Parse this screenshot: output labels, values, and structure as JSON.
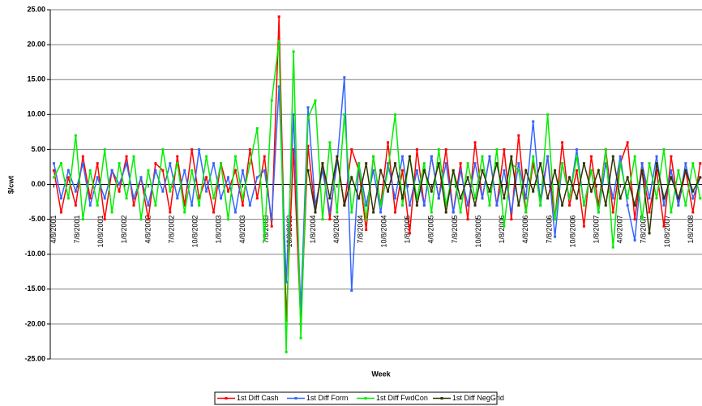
{
  "chart_data": {
    "type": "line",
    "x_label": "Week",
    "y_label": "$/cwt",
    "xlim": [
      -2,
      357
    ],
    "ylim": [
      -25,
      25
    ],
    "grid": true,
    "legend": "bottom",
    "yticks": [
      {
        "value": -25,
        "label": "-25.00"
      },
      {
        "value": -20,
        "label": "-20.00"
      },
      {
        "value": -15,
        "label": "-15.00"
      },
      {
        "value": -10,
        "label": "-10.00"
      },
      {
        "value": -5,
        "label": "-5.00"
      },
      {
        "value": 0,
        "label": "0.00"
      },
      {
        "value": 5,
        "label": "5.00"
      },
      {
        "value": 10,
        "label": "10.00"
      },
      {
        "value": 15,
        "label": "15.00"
      },
      {
        "value": 20,
        "label": "20.00"
      },
      {
        "value": 25,
        "label": "25.00"
      }
    ],
    "xticks": [
      {
        "value": 0,
        "label": "4/8/2001"
      },
      {
        "value": 13,
        "label": "7/8/2001"
      },
      {
        "value": 26,
        "label": "10/8/2001"
      },
      {
        "value": 39,
        "label": "1/8/2002"
      },
      {
        "value": 52,
        "label": "4/8/2002"
      },
      {
        "value": 65,
        "label": "7/8/2002"
      },
      {
        "value": 78,
        "label": "10/8/2002"
      },
      {
        "value": 91,
        "label": "1/8/2003"
      },
      {
        "value": 104,
        "label": "4/8/2003"
      },
      {
        "value": 117,
        "label": "7/8/2003"
      },
      {
        "value": 130,
        "label": "10/8/2003"
      },
      {
        "value": 143,
        "label": "1/8/2004"
      },
      {
        "value": 156,
        "label": "4/8/2004"
      },
      {
        "value": 169,
        "label": "7/8/2004"
      },
      {
        "value": 182,
        "label": "10/8/2004"
      },
      {
        "value": 195,
        "label": "1/8/2005"
      },
      {
        "value": 208,
        "label": "4/8/2005"
      },
      {
        "value": 221,
        "label": "7/8/2005"
      },
      {
        "value": 234,
        "label": "10/8/2005"
      },
      {
        "value": 247,
        "label": "1/8/2006"
      },
      {
        "value": 260,
        "label": "4/8/2006"
      },
      {
        "value": 273,
        "label": "7/8/2006"
      },
      {
        "value": 286,
        "label": "10/8/2006"
      },
      {
        "value": 299,
        "label": "1/8/2007"
      },
      {
        "value": 312,
        "label": "4/8/2007"
      },
      {
        "value": 325,
        "label": "7/8/2007"
      },
      {
        "value": 338,
        "label": "10/8/2007"
      },
      {
        "value": 351,
        "label": "1/8/2008"
      }
    ],
    "x": [
      0,
      4,
      8,
      12,
      16,
      20,
      24,
      28,
      32,
      36,
      40,
      44,
      48,
      52,
      56,
      60,
      64,
      68,
      72,
      76,
      80,
      84,
      88,
      92,
      96,
      100,
      104,
      108,
      112,
      116,
      120,
      124,
      128,
      132,
      136,
      140,
      144,
      148,
      152,
      156,
      160,
      164,
      168,
      172,
      176,
      180,
      184,
      188,
      192,
      196,
      200,
      204,
      208,
      212,
      216,
      220,
      224,
      228,
      232,
      236,
      240,
      244,
      248,
      252,
      256,
      260,
      264,
      268,
      272,
      276,
      280,
      284,
      288,
      292,
      296,
      300,
      304,
      308,
      312,
      316,
      320,
      324,
      328,
      332,
      336,
      340,
      344,
      348,
      352,
      356
    ],
    "series": [
      {
        "name": "1st Diff Cash",
        "color": "#ff0000",
        "values": [
          2,
          -4,
          1,
          -3,
          4,
          -2,
          3,
          -5,
          2,
          -1,
          4,
          -3,
          1,
          -5,
          3,
          2,
          -4,
          4,
          -3,
          5,
          -2,
          1,
          -4,
          3,
          -1,
          2,
          -3,
          5,
          -2,
          4,
          -6,
          24,
          -19.5,
          5,
          -20,
          5.5,
          -4,
          3,
          -5,
          4,
          -3,
          5,
          2,
          -6.5,
          4,
          -3,
          6,
          -4,
          2,
          -7,
          5,
          -3,
          4,
          -2,
          5,
          -4,
          3,
          -5,
          6,
          -2,
          4,
          -3,
          5,
          -5,
          7,
          -4,
          3,
          -2,
          4,
          -5,
          6,
          -3,
          2,
          -6,
          4,
          -3,
          5,
          -4,
          3,
          6,
          -5,
          3,
          -4,
          2,
          -6,
          4,
          -3,
          2,
          -4,
          3
        ]
      },
      {
        "name": "1st Diff Form",
        "color": "#3366ff",
        "values": [
          3,
          -2,
          2,
          -1,
          3,
          -3,
          1,
          -2,
          2,
          0,
          3,
          -2,
          1,
          -3,
          2,
          -1,
          3,
          -2,
          2,
          -3,
          5,
          -1,
          3,
          -2,
          1,
          -4,
          2,
          -3,
          1,
          2,
          -5,
          14,
          -14,
          10,
          -18,
          11,
          -3,
          2,
          -4,
          3,
          15.3,
          -15.2,
          3,
          -3,
          2,
          -4,
          3,
          -2,
          4,
          -3,
          2,
          -3,
          4,
          -2,
          3,
          -4,
          2,
          -3,
          3,
          -2,
          4,
          -3,
          2,
          -4,
          3,
          -2,
          9,
          -3,
          4,
          -7.5,
          3,
          -2,
          5,
          -3,
          2,
          -4,
          3,
          -2,
          4,
          -3,
          -8,
          3,
          -2,
          4,
          -3,
          2,
          -3,
          3,
          -2,
          1
        ]
      },
      {
        "name": "1st Diff FwdCon",
        "color": "#00ee00",
        "values": [
          1,
          3,
          -2,
          7,
          -5,
          2,
          -3,
          5,
          -4,
          3,
          -2,
          4,
          -5,
          2,
          -3,
          5,
          -1,
          3,
          -4,
          2,
          -3,
          4,
          -2,
          3,
          -5,
          4,
          -2,
          3,
          8,
          -8,
          12,
          20.5,
          -24,
          19,
          -22,
          9.5,
          12,
          -5,
          6,
          -4,
          10,
          -4,
          3,
          -5,
          4,
          -3,
          2,
          10,
          -3,
          4,
          -2,
          3,
          -4,
          5,
          -3,
          2,
          -4,
          3,
          -2,
          4,
          -3,
          5,
          -6,
          3,
          2,
          -4,
          4,
          -3,
          10,
          -5,
          3,
          -2,
          4,
          -3,
          2,
          -4,
          5,
          -9,
          3,
          -2,
          4,
          -5,
          3,
          -2,
          5,
          -4,
          2,
          -3,
          3,
          -2
        ]
      },
      {
        "name": "1st Diff NegGrid",
        "color": "#333300",
        "values": [
          null,
          null,
          null,
          null,
          null,
          null,
          null,
          null,
          null,
          null,
          null,
          null,
          null,
          null,
          null,
          null,
          null,
          null,
          null,
          null,
          null,
          null,
          null,
          null,
          null,
          null,
          null,
          null,
          null,
          null,
          null,
          null,
          null,
          null,
          null,
          2,
          -4,
          3,
          -2,
          4,
          -3,
          1,
          -2,
          3,
          -4,
          2,
          -1,
          3,
          -2,
          4,
          -3,
          2,
          -1,
          3,
          -4,
          2,
          -2,
          1,
          -3,
          2,
          -1,
          3,
          -2,
          4,
          -3,
          2,
          -1,
          3,
          -2,
          2,
          -3,
          1,
          -2,
          3,
          -1,
          2,
          -3,
          4,
          -2,
          1,
          -3,
          2,
          -7,
          3,
          -2,
          1,
          -2,
          2,
          -1,
          1
        ]
      }
    ]
  }
}
